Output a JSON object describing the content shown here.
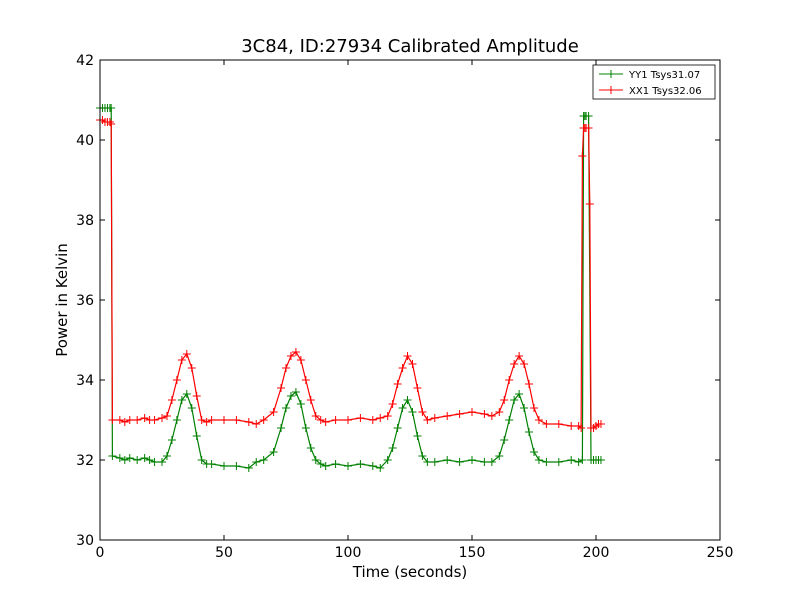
{
  "chart_data": {
    "type": "line",
    "title": "3C84, ID:27934 Calibrated Amplitude",
    "xlabel": "Time (seconds)",
    "ylabel": "Power in Kelvin",
    "xlim": [
      0,
      250
    ],
    "ylim": [
      30,
      42
    ],
    "x_ticks": [
      0,
      50,
      100,
      150,
      200,
      250
    ],
    "y_ticks": [
      30,
      32,
      34,
      36,
      38,
      40,
      42
    ],
    "x_tick_labels": [
      "0",
      "50",
      "100",
      "150",
      "200",
      "250"
    ],
    "y_tick_labels": [
      "30",
      "32",
      "34",
      "36",
      "38",
      "40",
      "42"
    ],
    "grid": false,
    "legend_position": "top-right",
    "marker": "+",
    "series": [
      {
        "name": "YY1 Tsys31.07",
        "color": "#008000",
        "x": [
          0,
          1,
          2,
          3,
          4,
          4.5,
          5,
          8,
          10,
          12,
          15,
          18,
          20,
          22,
          25,
          27,
          29,
          31,
          33,
          35,
          37,
          39,
          41,
          43,
          45,
          50,
          55,
          60,
          63,
          66,
          70,
          73,
          75,
          77,
          79,
          81,
          83,
          85,
          87,
          89,
          91,
          95,
          100,
          105,
          110,
          113,
          116,
          118,
          120,
          122,
          124,
          126,
          128,
          130,
          132,
          135,
          140,
          145,
          150,
          155,
          158,
          161,
          163,
          165,
          167,
          169,
          171,
          173,
          175,
          177,
          180,
          185,
          190,
          193,
          194.5,
          195,
          195.5,
          196,
          197,
          198,
          199,
          200,
          201,
          202
        ],
        "values": [
          40.8,
          40.8,
          40.8,
          40.8,
          40.8,
          40.8,
          32.1,
          32.05,
          32.0,
          32.05,
          32.0,
          32.05,
          32.0,
          31.95,
          31.95,
          32.1,
          32.5,
          33.0,
          33.5,
          33.65,
          33.3,
          32.6,
          32.0,
          31.9,
          31.9,
          31.85,
          31.85,
          31.8,
          31.95,
          32.0,
          32.2,
          32.8,
          33.3,
          33.6,
          33.7,
          33.4,
          32.8,
          32.3,
          32.0,
          31.9,
          31.85,
          31.9,
          31.85,
          31.9,
          31.85,
          31.8,
          32.0,
          32.3,
          32.8,
          33.3,
          33.5,
          33.2,
          32.6,
          32.1,
          31.95,
          31.95,
          32.0,
          31.95,
          32.0,
          31.95,
          31.95,
          32.1,
          32.5,
          33.0,
          33.5,
          33.65,
          33.3,
          32.7,
          32.2,
          32.0,
          31.95,
          31.95,
          32.0,
          31.95,
          32.0,
          40.6,
          40.6,
          40.6,
          40.6,
          32.0,
          32.0,
          32.0,
          32.0,
          32.0
        ]
      },
      {
        "name": "XX1 Tsys32.06",
        "color": "#ff0000",
        "x": [
          0,
          1,
          2,
          3,
          4,
          4.5,
          5,
          8,
          10,
          12,
          15,
          18,
          20,
          22,
          25,
          27,
          29,
          31,
          33,
          35,
          37,
          39,
          41,
          43,
          45,
          50,
          55,
          60,
          63,
          66,
          70,
          73,
          75,
          77,
          79,
          81,
          83,
          85,
          87,
          89,
          91,
          95,
          100,
          105,
          110,
          113,
          116,
          118,
          120,
          122,
          124,
          126,
          128,
          130,
          132,
          135,
          140,
          145,
          150,
          155,
          158,
          161,
          163,
          165,
          167,
          169,
          171,
          173,
          175,
          177,
          180,
          185,
          190,
          193,
          194,
          194.5,
          195,
          195.5,
          196,
          197,
          197.5,
          198,
          199,
          200,
          201,
          202
        ],
        "values": [
          40.5,
          40.5,
          40.45,
          40.45,
          40.45,
          40.4,
          33.0,
          33.0,
          32.95,
          33.0,
          33.0,
          33.05,
          33.0,
          33.0,
          33.05,
          33.1,
          33.5,
          34.0,
          34.5,
          34.65,
          34.3,
          33.6,
          33.0,
          32.95,
          33.0,
          33.0,
          33.0,
          32.95,
          32.9,
          33.0,
          33.2,
          33.8,
          34.3,
          34.6,
          34.7,
          34.5,
          34.0,
          33.5,
          33.1,
          33.0,
          32.95,
          33.0,
          33.0,
          33.05,
          33.0,
          33.05,
          33.1,
          33.4,
          33.9,
          34.3,
          34.6,
          34.4,
          33.8,
          33.2,
          33.0,
          33.05,
          33.1,
          33.15,
          33.2,
          33.15,
          33.1,
          33.2,
          33.5,
          34.0,
          34.4,
          34.6,
          34.4,
          33.9,
          33.3,
          33.0,
          32.9,
          32.9,
          32.85,
          32.85,
          32.8,
          39.6,
          40.3,
          40.3,
          40.3,
          40.3,
          38.4,
          32.8,
          32.8,
          32.85,
          32.9,
          32.9
        ]
      }
    ]
  }
}
